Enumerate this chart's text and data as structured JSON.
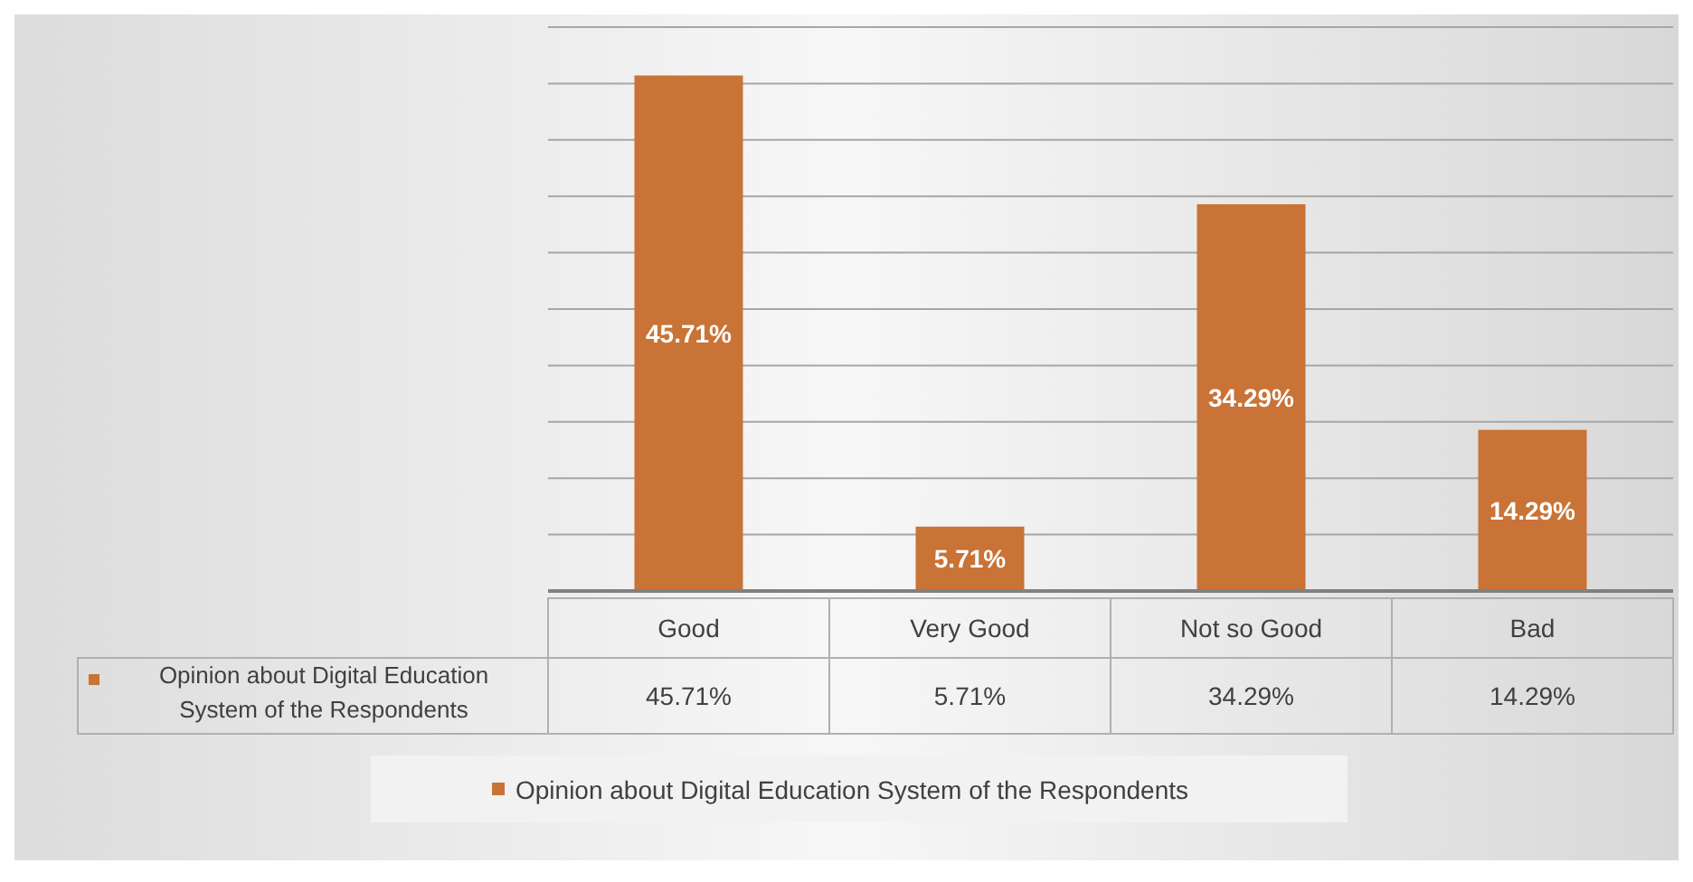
{
  "chart_data": {
    "type": "bar",
    "categories": [
      "Good",
      "Very Good",
      "Not so Good",
      "Bad"
    ],
    "series": [
      {
        "name": "Opinion about Digital Education System of the Respondents",
        "color": "#c97337",
        "values": [
          45.71,
          5.71,
          34.29,
          14.29
        ],
        "value_labels": [
          "45.71%",
          "5.71%",
          "34.29%",
          "14.29%"
        ]
      }
    ],
    "ylim": [
      0,
      50
    ],
    "yticks": [
      {
        "value": 0,
        "label": null
      },
      {
        "value": 5,
        "label": null
      },
      {
        "value": 10,
        "label": null
      },
      {
        "value": 15,
        "label": null
      },
      {
        "value": 20,
        "label": null
      },
      {
        "value": 25,
        "label": null
      },
      {
        "value": 30,
        "label": null
      },
      {
        "value": 35,
        "label": null
      },
      {
        "value": 40,
        "label": null
      },
      {
        "value": 45,
        "label": null
      },
      {
        "value": 50,
        "label": null
      }
    ],
    "tick_labels": "x",
    "grid": "y",
    "legend": "bottom"
  }
}
